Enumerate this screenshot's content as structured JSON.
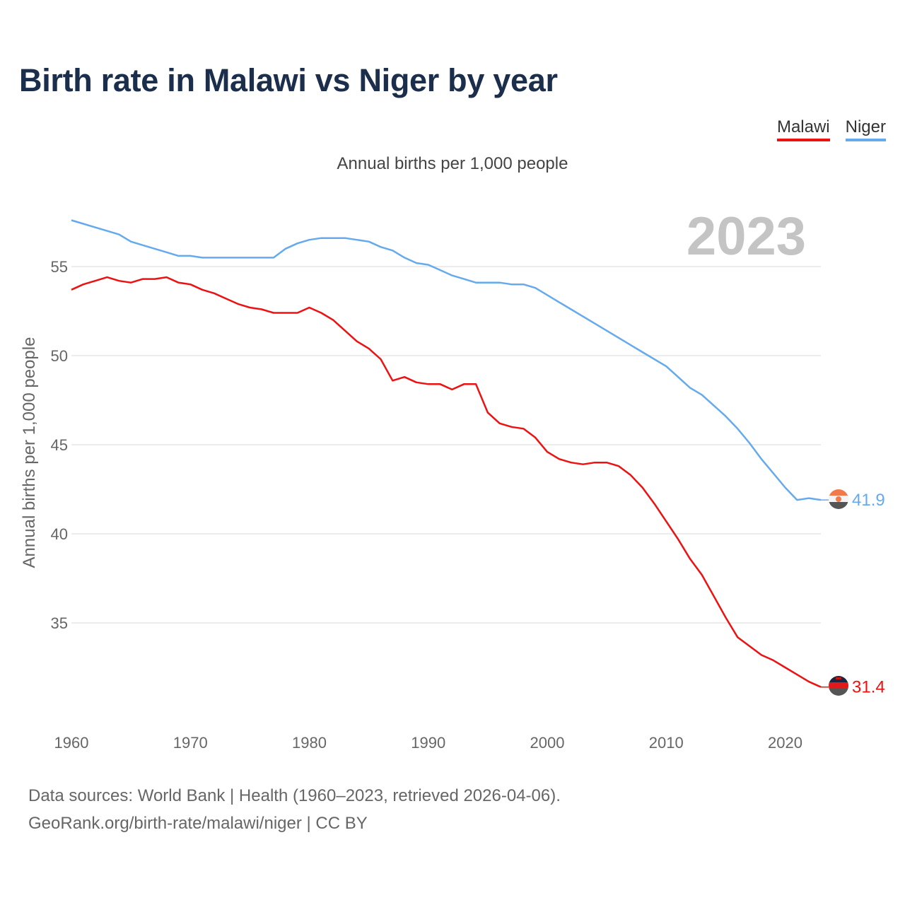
{
  "title": "Birth rate in Malawi vs Niger by year",
  "subtitle": "Annual births per 1,000 people",
  "year_label": "2023",
  "legend": [
    {
      "name": "Malawi",
      "color": "#ee1111"
    },
    {
      "name": "Niger",
      "color": "#66aaee"
    }
  ],
  "source": {
    "line1": "Data sources: World Bank | Health (1960–2023, retrieved 2026-04-06).",
    "line2": "GeoRank.org/birth-rate/malawi/niger | CC BY"
  },
  "chart_data": {
    "type": "line",
    "title": "Birth rate in Malawi vs Niger by year",
    "ylabel": "Annual births per 1,000 people",
    "xlabel": "",
    "xlim": [
      1960,
      2023
    ],
    "ylim": [
      30,
      58
    ],
    "xticks": [
      1960,
      1970,
      1980,
      1990,
      2000,
      2010,
      2020
    ],
    "yticks": [
      35,
      40,
      45,
      50,
      55
    ],
    "grid": true,
    "x": [
      1960,
      1961,
      1962,
      1963,
      1964,
      1965,
      1966,
      1967,
      1968,
      1969,
      1970,
      1971,
      1972,
      1973,
      1974,
      1975,
      1976,
      1977,
      1978,
      1979,
      1980,
      1981,
      1982,
      1983,
      1984,
      1985,
      1986,
      1987,
      1988,
      1989,
      1990,
      1991,
      1992,
      1993,
      1994,
      1995,
      1996,
      1997,
      1998,
      1999,
      2000,
      2001,
      2002,
      2003,
      2004,
      2005,
      2006,
      2007,
      2008,
      2009,
      2010,
      2011,
      2012,
      2013,
      2014,
      2015,
      2016,
      2017,
      2018,
      2019,
      2020,
      2021,
      2022,
      2023
    ],
    "series": [
      {
        "name": "Malawi",
        "color": "#ee1111",
        "end_label": "31.4",
        "values": [
          53.7,
          54.0,
          54.2,
          54.4,
          54.2,
          54.1,
          54.3,
          54.3,
          54.4,
          54.1,
          54.0,
          53.7,
          53.5,
          53.2,
          52.9,
          52.7,
          52.6,
          52.4,
          52.4,
          52.4,
          52.7,
          52.4,
          52.0,
          51.4,
          50.8,
          50.4,
          49.8,
          48.6,
          48.8,
          48.5,
          48.4,
          48.4,
          48.1,
          48.4,
          48.4,
          46.8,
          46.2,
          46.0,
          45.9,
          45.4,
          44.6,
          44.2,
          44.0,
          43.9,
          44.0,
          44.0,
          43.8,
          43.3,
          42.6,
          41.7,
          40.7,
          39.7,
          38.6,
          37.7,
          36.5,
          35.3,
          34.2,
          33.7,
          33.2,
          32.9,
          32.5,
          32.1,
          31.7,
          31.4
        ]
      },
      {
        "name": "Niger",
        "color": "#66aaee",
        "end_label": "41.9",
        "values": [
          57.6,
          57.4,
          57.2,
          57.0,
          56.8,
          56.4,
          56.2,
          56.0,
          55.8,
          55.6,
          55.6,
          55.5,
          55.5,
          55.5,
          55.5,
          55.5,
          55.5,
          55.5,
          56.0,
          56.3,
          56.5,
          56.6,
          56.6,
          56.6,
          56.5,
          56.4,
          56.1,
          55.9,
          55.5,
          55.2,
          55.1,
          54.8,
          54.5,
          54.3,
          54.1,
          54.1,
          54.1,
          54.0,
          54.0,
          53.8,
          53.4,
          53.0,
          52.6,
          52.2,
          51.8,
          51.4,
          51.0,
          50.6,
          50.2,
          49.8,
          49.4,
          48.8,
          48.2,
          47.8,
          47.2,
          46.6,
          45.9,
          45.1,
          44.2,
          43.4,
          42.6,
          41.9,
          42.0,
          41.9
        ]
      }
    ]
  }
}
